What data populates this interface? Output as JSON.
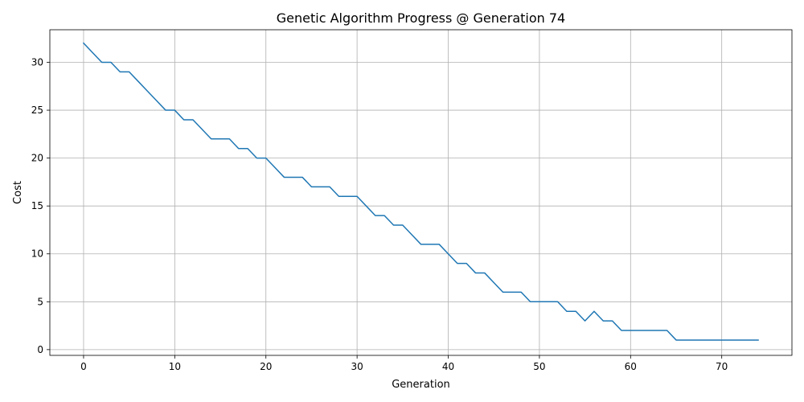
{
  "chart_data": {
    "type": "line",
    "title": "Genetic Algorithm Progress @ Generation 74",
    "xlabel": "Generation",
    "ylabel": "Cost",
    "xlim": [
      -3.7,
      77.7
    ],
    "ylim": [
      -0.6,
      33.4
    ],
    "xticks": [
      0,
      10,
      20,
      30,
      40,
      50,
      60,
      70
    ],
    "yticks": [
      0,
      5,
      10,
      15,
      20,
      25,
      30
    ],
    "grid": true,
    "series": [
      {
        "color": "#1f77b4",
        "x": [
          0,
          1,
          2,
          3,
          4,
          5,
          6,
          7,
          8,
          9,
          10,
          11,
          12,
          13,
          14,
          15,
          16,
          17,
          18,
          19,
          20,
          21,
          22,
          23,
          24,
          25,
          26,
          27,
          28,
          29,
          30,
          31,
          32,
          33,
          34,
          35,
          36,
          37,
          38,
          39,
          40,
          41,
          42,
          43,
          44,
          45,
          46,
          47,
          48,
          49,
          50,
          51,
          52,
          53,
          54,
          55,
          56,
          57,
          58,
          59,
          60,
          61,
          62,
          63,
          64,
          65,
          66,
          67,
          68,
          69,
          70,
          71,
          72,
          73,
          74
        ],
        "y": [
          32,
          31,
          30,
          30,
          29,
          29,
          28,
          27,
          26,
          25,
          25,
          24,
          24,
          23,
          22,
          22,
          22,
          21,
          21,
          20,
          20,
          19,
          18,
          18,
          18,
          17,
          17,
          17,
          16,
          16,
          16,
          15,
          14,
          14,
          13,
          13,
          12,
          11,
          11,
          11,
          10,
          9,
          9,
          8,
          8,
          7,
          6,
          6,
          6,
          5,
          5,
          5,
          5,
          4,
          4,
          3,
          4,
          3,
          3,
          2,
          2,
          2,
          2,
          2,
          2,
          1,
          1,
          1,
          1,
          1,
          1,
          1,
          1,
          1,
          1
        ]
      }
    ]
  }
}
